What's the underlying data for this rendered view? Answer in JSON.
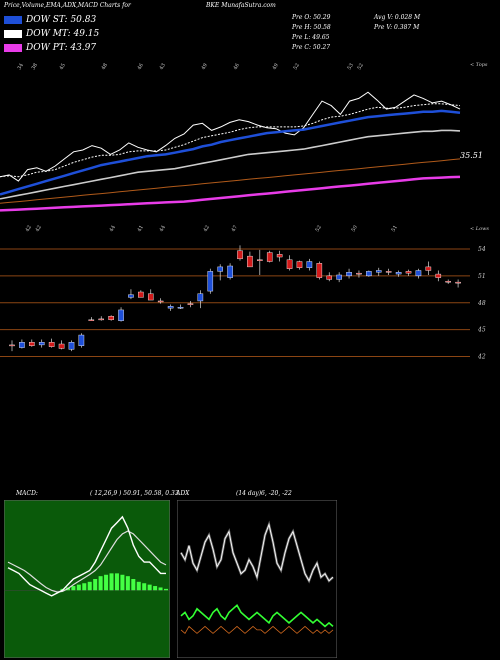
{
  "header": {
    "title_left": "Price,Volume,EMA,ADX,MACD Charts for",
    "ticker": "BKE",
    "site": "MunafaSutra.com"
  },
  "legend": [
    {
      "label": "DOW ST: 50.83",
      "color": "#1e4fd8"
    },
    {
      "label": "DOW MT: 49.15",
      "color": "#ffffff"
    },
    {
      "label": "DOW PT: 43.97",
      "color": "#e83ce8"
    }
  ],
  "stats": {
    "prev_open": "Pre  O: 50.29",
    "prev_high": "Pre  H: 50.58",
    "prev_low": "Pre  L: 49.65",
    "prev_close": "Pre  C: 50.27",
    "avg_volume": "Avg V: 0.028  M",
    "prev_volume": "Pre  V: 0.387 M"
  },
  "chart_data": [
    {
      "type": "line",
      "name": "ema-panel",
      "top_axis_label": "< Tops",
      "bottom_axis_label": "< Lows",
      "top_ticks": [
        "34",
        "38",
        "45",
        "48",
        "46",
        "43",
        "49",
        "46",
        "49",
        "52",
        "53",
        "52"
      ],
      "bottom_ticks": [
        "42",
        "42",
        "44",
        "41",
        "44",
        "42",
        "47",
        "52",
        "50",
        "51"
      ],
      "value_label": "35.51",
      "series": [
        {
          "name": "price",
          "color": "#ffffff",
          "style": "solid",
          "values": [
            44,
            44.2,
            43.5,
            44.8,
            45,
            44.6,
            45.2,
            46,
            46.8,
            47,
            47.5,
            47.2,
            46.5,
            47,
            47.8,
            47.3,
            47,
            46.8,
            47.5,
            48.3,
            48.8,
            49.8,
            50,
            49.2,
            49.6,
            50.1,
            50.4,
            50.2,
            49.8,
            49.5,
            49.4,
            48.9,
            48.7,
            49.5,
            51,
            52.5,
            52,
            51,
            52.5,
            52.8,
            53.5,
            52.6,
            51.6,
            51.8,
            52.5,
            53.2,
            52.8,
            52.3,
            52.5,
            52.1,
            51.6
          ]
        },
        {
          "name": "ema-fast",
          "color": "#ffffff",
          "style": "dashed",
          "values": [
            44,
            44.1,
            44,
            44.2,
            44.5,
            44.6,
            44.8,
            45.2,
            45.6,
            45.9,
            46.2,
            46.4,
            46.4,
            46.5,
            46.8,
            46.9,
            46.9,
            46.9,
            47,
            47.3,
            47.6,
            48,
            48.4,
            48.6,
            48.8,
            49,
            49.3,
            49.5,
            49.6,
            49.6,
            49.6,
            49.6,
            49.6,
            49.7,
            50,
            50.4,
            50.7,
            50.8,
            51,
            51.3,
            51.6,
            51.8,
            51.7,
            51.7,
            51.8,
            52,
            52.1,
            52.2,
            52.2,
            52.1,
            52
          ]
        },
        {
          "name": "ema-st",
          "color": "#1e4fd8",
          "style": "solid",
          "values": [
            42,
            42.3,
            42.6,
            42.9,
            43.2,
            43.5,
            43.8,
            44.1,
            44.4,
            44.7,
            45,
            45.3,
            45.5,
            45.7,
            45.9,
            46.1,
            46.3,
            46.4,
            46.5,
            46.7,
            46.9,
            47.1,
            47.4,
            47.6,
            47.9,
            48.1,
            48.3,
            48.5,
            48.7,
            48.9,
            49,
            49.1,
            49.2,
            49.3,
            49.5,
            49.7,
            49.9,
            50.1,
            50.3,
            50.5,
            50.7,
            50.8,
            50.9,
            51,
            51.1,
            51.2,
            51.3,
            51.3,
            51.4,
            51.3,
            51.2
          ]
        },
        {
          "name": "ema-mt",
          "color": "#cccccc",
          "style": "solid",
          "values": [
            41.5,
            41.7,
            41.9,
            42.1,
            42.3,
            42.5,
            42.7,
            42.9,
            43.1,
            43.3,
            43.5,
            43.7,
            43.9,
            44.1,
            44.3,
            44.5,
            44.6,
            44.7,
            44.8,
            44.9,
            45.1,
            45.3,
            45.5,
            45.7,
            45.9,
            46.1,
            46.3,
            46.5,
            46.6,
            46.7,
            46.8,
            46.9,
            47,
            47.1,
            47.3,
            47.5,
            47.7,
            47.9,
            48.1,
            48.3,
            48.5,
            48.6,
            48.7,
            48.8,
            48.9,
            49,
            49.1,
            49.1,
            49.2,
            49.2,
            49.15
          ]
        },
        {
          "name": "ema-lt",
          "color": "#b05a1a",
          "style": "solid",
          "values": [
            41,
            41.1,
            41.2,
            41.3,
            41.4,
            41.5,
            41.6,
            41.7,
            41.8,
            41.9,
            42,
            42.1,
            42.2,
            42.3,
            42.4,
            42.5,
            42.6,
            42.7,
            42.8,
            42.9,
            43,
            43.1,
            43.2,
            43.3,
            43.4,
            43.5,
            43.6,
            43.7,
            43.8,
            43.9,
            44,
            44.1,
            44.2,
            44.3,
            44.4,
            44.5,
            44.6,
            44.7,
            44.8,
            44.9,
            45,
            45.1,
            45.2,
            45.3,
            45.4,
            45.5,
            45.6,
            45.7,
            45.8,
            45.9,
            46
          ]
        },
        {
          "name": "ema-pt",
          "color": "#e83ce8",
          "style": "solid",
          "values": [
            40.2,
            40.25,
            40.3,
            40.35,
            40.4,
            40.45,
            40.5,
            40.55,
            40.6,
            40.65,
            40.7,
            40.75,
            40.8,
            40.85,
            40.9,
            40.95,
            41,
            41.05,
            41.1,
            41.15,
            41.2,
            41.3,
            41.4,
            41.5,
            41.6,
            41.7,
            41.8,
            41.9,
            42,
            42.1,
            42.2,
            42.3,
            42.4,
            42.5,
            42.6,
            42.7,
            42.8,
            42.9,
            43,
            43.1,
            43.2,
            43.3,
            43.4,
            43.5,
            43.6,
            43.7,
            43.8,
            43.85,
            43.9,
            43.95,
            43.97
          ]
        }
      ]
    },
    {
      "type": "candlestick",
      "name": "price-panel",
      "y_ticks": [
        "54",
        "51",
        "48",
        "45",
        "42"
      ],
      "y_values": [
        54,
        51,
        48,
        45,
        42
      ],
      "candles": [
        {
          "o": 43.2,
          "h": 43.8,
          "l": 42.6,
          "c": 43.3,
          "color": "red"
        },
        {
          "o": 43.0,
          "h": 43.9,
          "l": 42.9,
          "c": 43.6,
          "color": "blue"
        },
        {
          "o": 43.6,
          "h": 43.9,
          "l": 43.1,
          "c": 43.2,
          "color": "red"
        },
        {
          "o": 43.3,
          "h": 43.9,
          "l": 43.0,
          "c": 43.6,
          "color": "blue"
        },
        {
          "o": 43.6,
          "h": 44.0,
          "l": 43.0,
          "c": 43.1,
          "color": "red"
        },
        {
          "o": 43.4,
          "h": 43.8,
          "l": 42.8,
          "c": 42.9,
          "color": "red"
        },
        {
          "o": 42.8,
          "h": 43.8,
          "l": 42.6,
          "c": 43.6,
          "color": "blue"
        },
        {
          "o": 43.2,
          "h": 44.6,
          "l": 43.0,
          "c": 44.4,
          "color": "blue"
        },
        {
          "o": 46.1,
          "h": 46.4,
          "l": 46.0,
          "c": 46.1,
          "color": "red"
        },
        {
          "o": 46.2,
          "h": 46.5,
          "l": 46.0,
          "c": 46.2,
          "color": "red"
        },
        {
          "o": 46.1,
          "h": 46.6,
          "l": 46.0,
          "c": 46.5,
          "color": "red"
        },
        {
          "o": 46.0,
          "h": 47.5,
          "l": 45.9,
          "c": 47.2,
          "color": "blue"
        },
        {
          "o": 48.6,
          "h": 49.5,
          "l": 48.4,
          "c": 48.9,
          "color": "blue"
        },
        {
          "o": 49.2,
          "h": 49.4,
          "l": 48.6,
          "c": 48.6,
          "color": "red"
        },
        {
          "o": 49.0,
          "h": 49.5,
          "l": 48.3,
          "c": 48.3,
          "color": "red"
        },
        {
          "o": 48.2,
          "h": 48.5,
          "l": 47.9,
          "c": 48.1,
          "color": "red"
        },
        {
          "o": 47.4,
          "h": 47.8,
          "l": 47.1,
          "c": 47.6,
          "color": "blue"
        },
        {
          "o": 47.5,
          "h": 47.8,
          "l": 47.3,
          "c": 47.5,
          "color": "blue"
        },
        {
          "o": 47.8,
          "h": 48.2,
          "l": 47.5,
          "c": 47.9,
          "color": "red"
        },
        {
          "o": 48.2,
          "h": 49.4,
          "l": 47.4,
          "c": 49.0,
          "color": "blue"
        },
        {
          "o": 49.3,
          "h": 51.8,
          "l": 49.0,
          "c": 51.5,
          "color": "blue"
        },
        {
          "o": 51.5,
          "h": 52.3,
          "l": 50.5,
          "c": 52.0,
          "color": "blue"
        },
        {
          "o": 50.8,
          "h": 52.4,
          "l": 50.6,
          "c": 52.1,
          "color": "blue"
        },
        {
          "o": 52.9,
          "h": 54.4,
          "l": 52.7,
          "c": 53.8,
          "color": "red"
        },
        {
          "o": 53.2,
          "h": 53.7,
          "l": 52.0,
          "c": 52.0,
          "color": "red"
        },
        {
          "o": 52.8,
          "h": 53.9,
          "l": 51.1,
          "c": 52.7,
          "color": "red"
        },
        {
          "o": 52.6,
          "h": 53.8,
          "l": 52.5,
          "c": 53.6,
          "color": "red"
        },
        {
          "o": 53.4,
          "h": 53.8,
          "l": 52.6,
          "c": 53.1,
          "color": "red"
        },
        {
          "o": 52.8,
          "h": 53.3,
          "l": 51.6,
          "c": 51.8,
          "color": "red"
        },
        {
          "o": 51.9,
          "h": 52.7,
          "l": 51.7,
          "c": 52.6,
          "color": "red"
        },
        {
          "o": 51.9,
          "h": 52.9,
          "l": 51.6,
          "c": 52.6,
          "color": "blue"
        },
        {
          "o": 52.4,
          "h": 52.6,
          "l": 50.6,
          "c": 50.8,
          "color": "red"
        },
        {
          "o": 50.6,
          "h": 51.4,
          "l": 50.4,
          "c": 51.0,
          "color": "red"
        },
        {
          "o": 50.6,
          "h": 51.4,
          "l": 50.3,
          "c": 51.1,
          "color": "blue"
        },
        {
          "o": 51.0,
          "h": 51.8,
          "l": 50.7,
          "c": 51.4,
          "color": "blue"
        },
        {
          "o": 51.2,
          "h": 51.6,
          "l": 50.8,
          "c": 51.3,
          "color": "red"
        },
        {
          "o": 51.0,
          "h": 51.6,
          "l": 50.9,
          "c": 51.5,
          "color": "blue"
        },
        {
          "o": 51.4,
          "h": 51.9,
          "l": 51.0,
          "c": 51.6,
          "color": "blue"
        },
        {
          "o": 51.4,
          "h": 51.8,
          "l": 51.1,
          "c": 51.5,
          "color": "red"
        },
        {
          "o": 51.2,
          "h": 51.6,
          "l": 50.9,
          "c": 51.4,
          "color": "blue"
        },
        {
          "o": 51.3,
          "h": 51.7,
          "l": 51.0,
          "c": 51.5,
          "color": "red"
        },
        {
          "o": 51.0,
          "h": 51.8,
          "l": 50.7,
          "c": 51.6,
          "color": "blue"
        },
        {
          "o": 52.0,
          "h": 52.6,
          "l": 51.1,
          "c": 51.6,
          "color": "red"
        },
        {
          "o": 51.2,
          "h": 51.6,
          "l": 50.4,
          "c": 50.8,
          "color": "red"
        },
        {
          "o": 50.4,
          "h": 50.6,
          "l": 50.1,
          "c": 50.3,
          "color": "red"
        },
        {
          "o": 50.3,
          "h": 50.6,
          "l": 49.7,
          "c": 50.3,
          "color": "red"
        }
      ]
    },
    {
      "type": "line",
      "name": "macd-panel",
      "label": "MACD:",
      "params": "( 12,26,9 ) 50.91, 50.58, 0.33",
      "macd": [
        0.4,
        0.35,
        0.3,
        0.2,
        0.1,
        0.05,
        0,
        -0.05,
        -0.1,
        -0.05,
        0,
        0.1,
        0.2,
        0.25,
        0.3,
        0.35,
        0.5,
        0.7,
        0.9,
        1.1,
        1.2,
        1.3,
        1.1,
        0.8,
        0.6,
        0.5,
        0.5,
        0.4,
        0.3,
        0.3
      ],
      "signal": [
        0.5,
        0.45,
        0.4,
        0.35,
        0.28,
        0.2,
        0.12,
        0.05,
        0,
        -0.03,
        -0.02,
        0.03,
        0.1,
        0.16,
        0.22,
        0.28,
        0.35,
        0.45,
        0.6,
        0.75,
        0.9,
        1.0,
        1.05,
        1.0,
        0.9,
        0.8,
        0.7,
        0.6,
        0.5,
        0.45
      ],
      "histogram": [
        0,
        0,
        0,
        0,
        0,
        0,
        0,
        0,
        0,
        0,
        0.05,
        0.1,
        0.15,
        0.2,
        0.25,
        0.3,
        0.4,
        0.5,
        0.55,
        0.6,
        0.6,
        0.55,
        0.5,
        0.4,
        0.3,
        0.25,
        0.2,
        0.15,
        0.1,
        0.05
      ]
    },
    {
      "type": "line",
      "name": "adx-panel",
      "label": "ADX",
      "params": "(14  day)6,  -20,  -22",
      "adx": [
        30,
        28,
        32,
        27,
        25,
        29,
        33,
        35,
        31,
        26,
        28,
        34,
        36,
        30,
        27,
        24,
        25,
        28,
        26,
        23,
        29,
        35,
        38,
        33,
        27,
        25,
        30,
        34,
        36,
        32,
        28,
        24,
        22,
        25,
        27,
        23,
        24,
        22,
        23
      ],
      "di_plus": [
        12,
        13,
        11,
        12,
        14,
        13,
        12,
        11,
        13,
        14,
        12,
        11,
        13,
        14,
        15,
        13,
        12,
        11,
        12,
        13,
        12,
        11,
        10,
        12,
        13,
        12,
        11,
        10,
        11,
        12,
        13,
        12,
        11,
        10,
        11,
        10,
        9,
        10,
        9
      ],
      "di_minus": [
        8,
        7,
        9,
        8,
        7,
        8,
        9,
        8,
        7,
        8,
        9,
        8,
        7,
        8,
        9,
        8,
        7,
        8,
        9,
        8,
        8,
        7,
        8,
        9,
        8,
        7,
        8,
        9,
        8,
        7,
        8,
        9,
        8,
        7,
        8,
        7,
        8,
        7,
        8
      ]
    }
  ]
}
